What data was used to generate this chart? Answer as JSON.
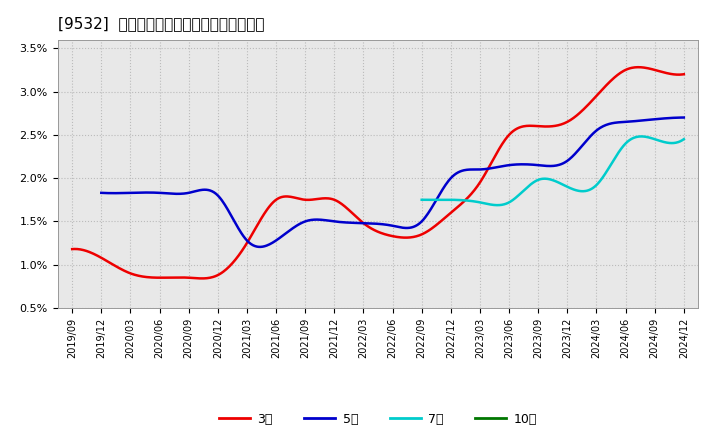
{
  "title": "[9532]  経常利益マージンの標準偏差の推移",
  "ylim": [
    0.005,
    0.036
  ],
  "yticks": [
    0.005,
    0.01,
    0.015,
    0.02,
    0.025,
    0.03,
    0.035
  ],
  "ytick_labels": [
    "0.5%",
    "1.0%",
    "1.5%",
    "2.0%",
    "2.5%",
    "3.0%",
    "3.5%"
  ],
  "x_labels": [
    "2019/09",
    "2019/12",
    "2020/03",
    "2020/06",
    "2020/09",
    "2020/12",
    "2021/03",
    "2021/06",
    "2021/09",
    "2021/12",
    "2022/03",
    "2022/06",
    "2022/09",
    "2022/12",
    "2023/03",
    "2023/06",
    "2023/09",
    "2023/12",
    "2024/03",
    "2024/06",
    "2024/09",
    "2024/12"
  ],
  "series_3y": [
    0.0118,
    0.0108,
    0.009,
    0.0085,
    0.0085,
    0.0088,
    0.0125,
    0.0175,
    0.0175,
    0.0175,
    0.0148,
    0.0133,
    0.0135,
    0.016,
    0.0195,
    0.025,
    0.026,
    0.0265,
    0.0295,
    0.0325,
    0.0325,
    0.032
  ],
  "series_5y": [
    null,
    0.0183,
    0.0183,
    0.0183,
    0.0183,
    0.018,
    0.0128,
    0.0128,
    0.015,
    0.015,
    0.0148,
    0.0145,
    0.015,
    0.02,
    0.021,
    0.0215,
    0.0215,
    0.022,
    0.0255,
    0.0265,
    0.0268,
    0.027
  ],
  "series_7y": [
    null,
    null,
    null,
    null,
    null,
    null,
    null,
    null,
    null,
    null,
    null,
    null,
    0.0175,
    0.0175,
    0.0172,
    0.0172,
    0.0198,
    0.019,
    0.0192,
    0.024,
    0.0245,
    0.0245
  ],
  "series_10y": [
    null,
    null,
    null,
    null,
    null,
    null,
    null,
    null,
    null,
    null,
    null,
    null,
    null,
    null,
    null,
    null,
    null,
    null,
    null,
    null,
    null,
    null
  ],
  "color_3y": "#ee0000",
  "color_5y": "#0000cc",
  "color_7y": "#00cccc",
  "color_10y": "#007700",
  "bg_color": "#ffffff",
  "plot_bg_color": "#e8e8e8",
  "grid_color": "#bbbbbb"
}
